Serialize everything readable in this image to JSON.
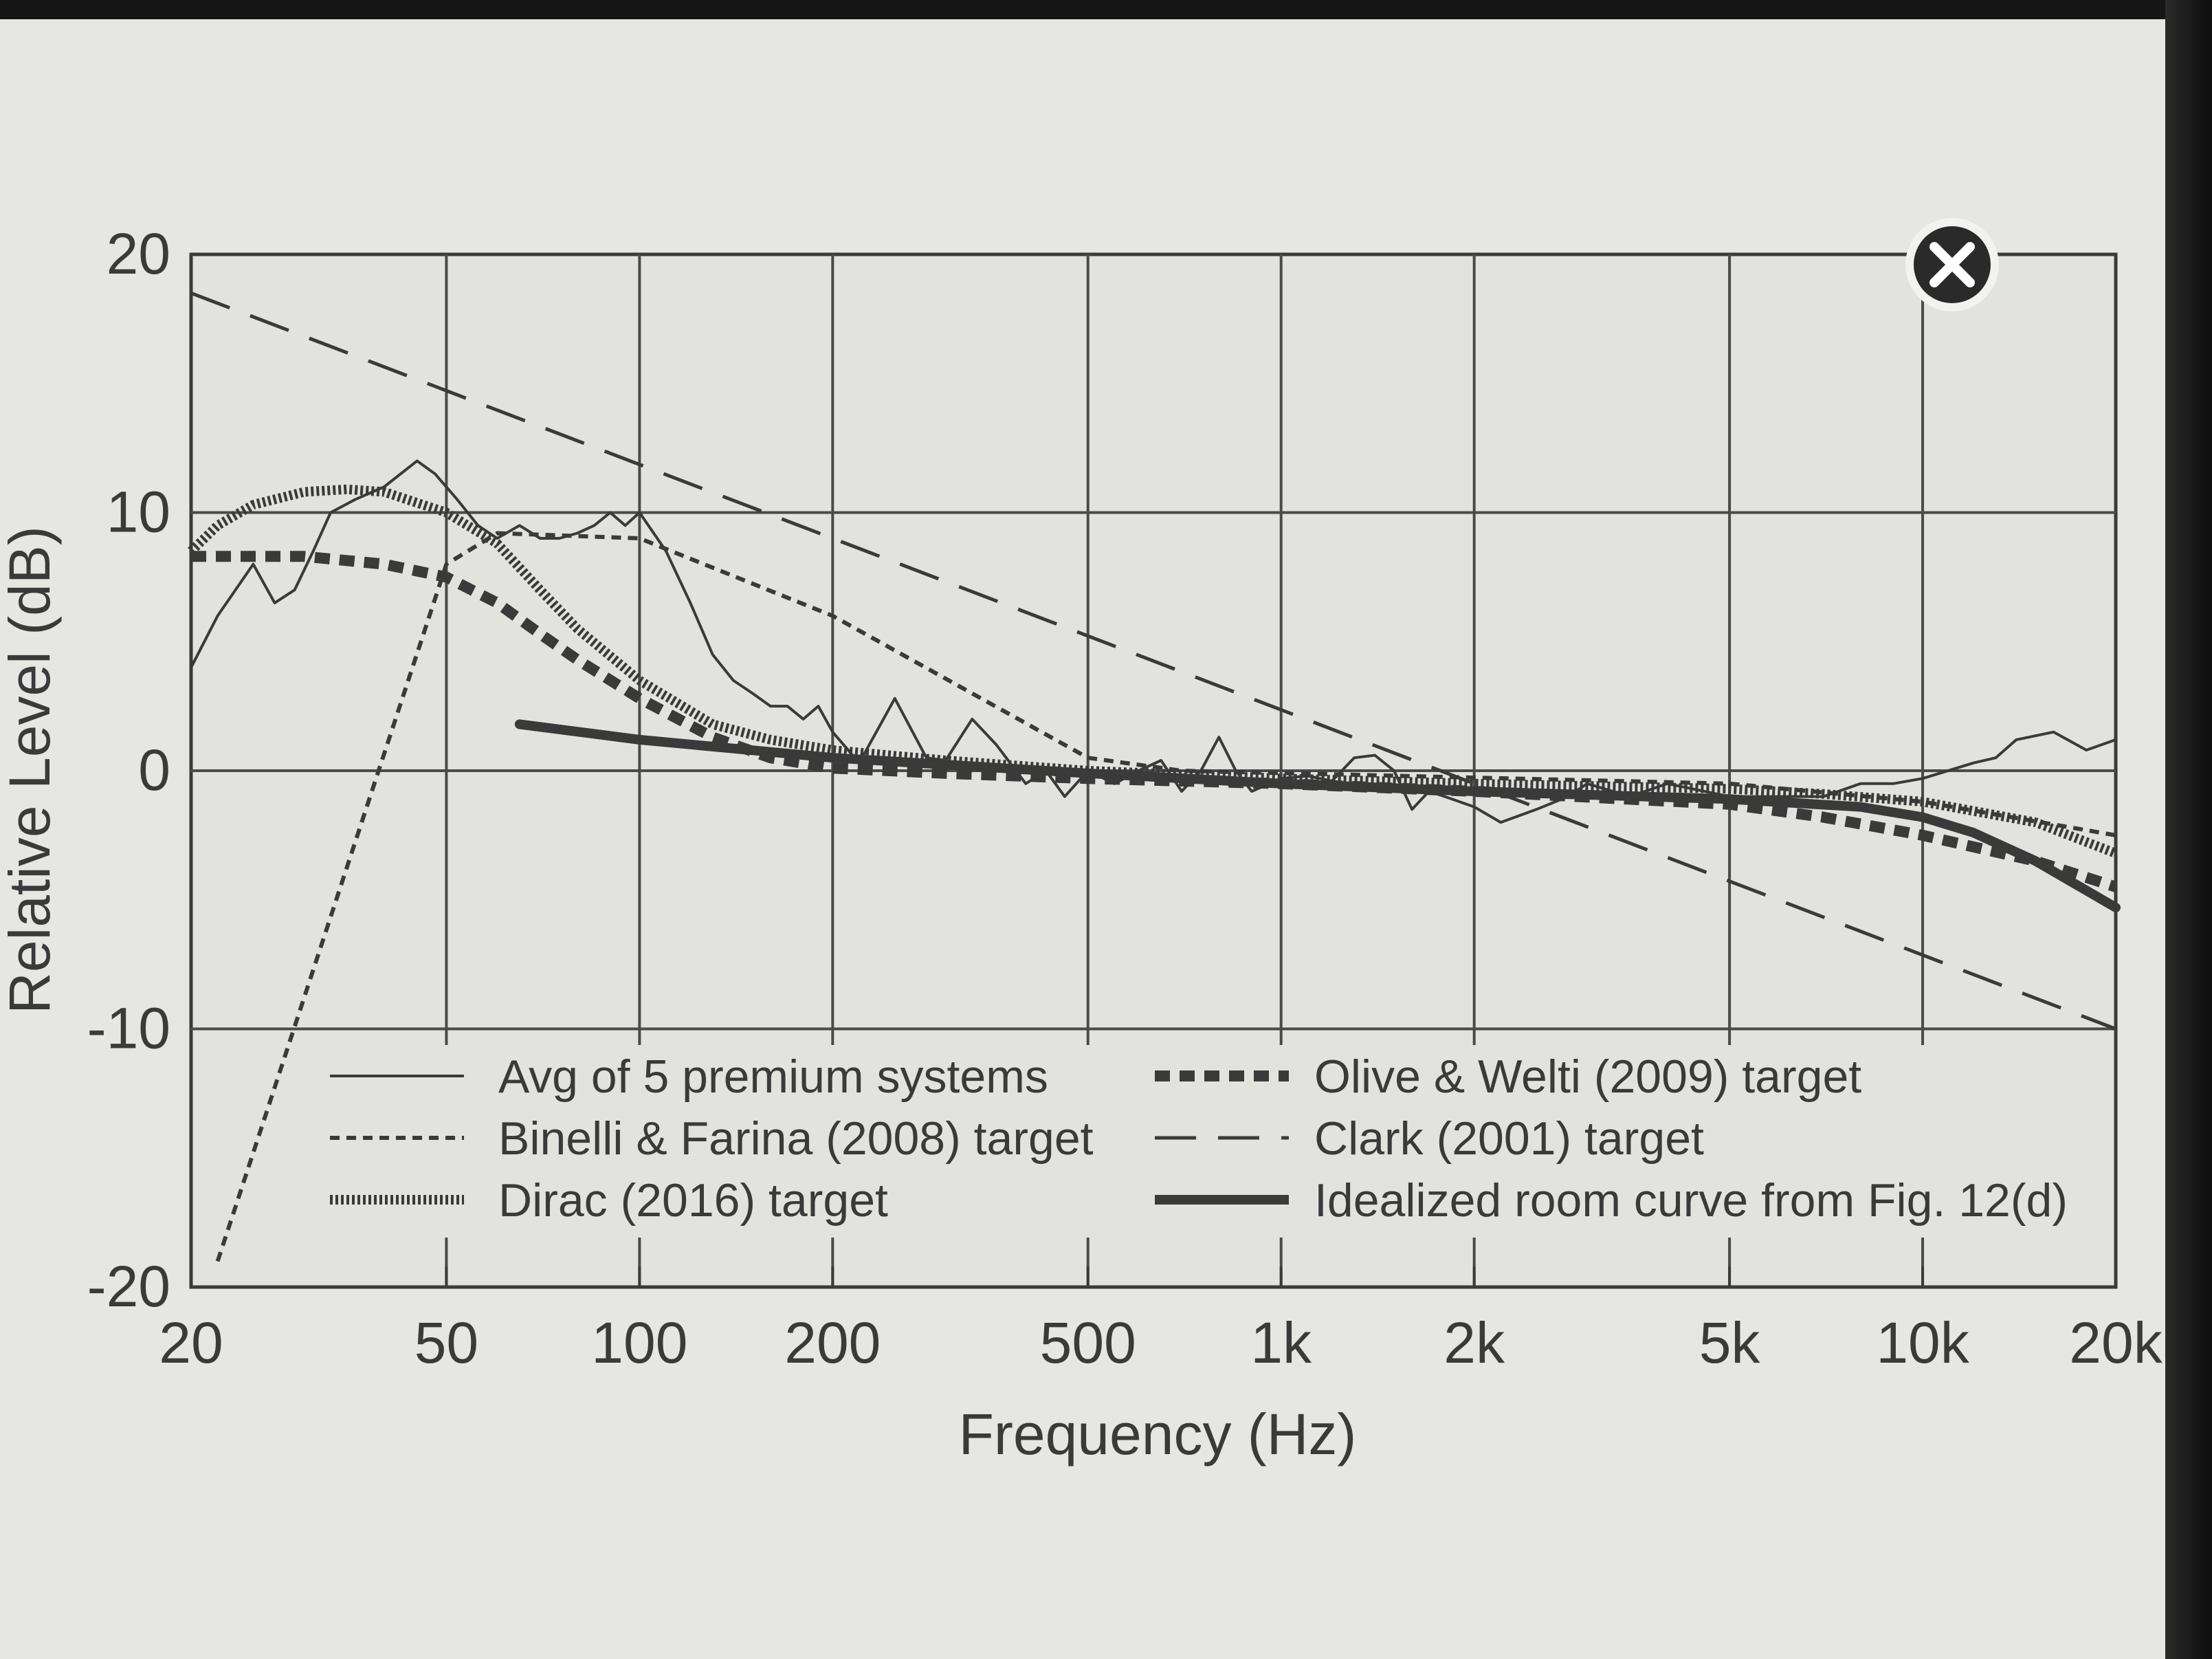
{
  "chart_data": {
    "type": "line",
    "xlabel": "Frequency (Hz)",
    "ylabel": "Relative Level (dB)",
    "xscale": "log",
    "xlim": [
      20,
      20000
    ],
    "ylim": [
      -20,
      20
    ],
    "grid": true,
    "legend_position": "bottom",
    "x_ticks": [
      {
        "value": 20,
        "label": "20"
      },
      {
        "value": 50,
        "label": "50"
      },
      {
        "value": 100,
        "label": "100"
      },
      {
        "value": 200,
        "label": "200"
      },
      {
        "value": 500,
        "label": "500"
      },
      {
        "value": 1000,
        "label": "1k"
      },
      {
        "value": 2000,
        "label": "2k"
      },
      {
        "value": 5000,
        "label": "5k"
      },
      {
        "value": 10000,
        "label": "10k"
      },
      {
        "value": 20000,
        "label": "20k"
      }
    ],
    "y_ticks": [
      {
        "value": 20,
        "label": "20"
      },
      {
        "value": 10,
        "label": "10"
      },
      {
        "value": 0,
        "label": "0"
      },
      {
        "value": -10,
        "label": "-10"
      },
      {
        "value": -20,
        "label": "-20"
      }
    ],
    "series": [
      {
        "name": "Avg of 5 premium systems",
        "style": "thin",
        "x": [
          20,
          22,
          25,
          27,
          29,
          31,
          33,
          36,
          40,
          45,
          48,
          52,
          56,
          60,
          65,
          70,
          75,
          80,
          85,
          90,
          95,
          100,
          110,
          120,
          130,
          140,
          150,
          160,
          170,
          180,
          190,
          200,
          220,
          250,
          280,
          300,
          330,
          360,
          400,
          430,
          460,
          500,
          550,
          600,
          650,
          700,
          750,
          800,
          850,
          900,
          1000,
          1100,
          1200,
          1300,
          1400,
          1500,
          1600,
          1700,
          1800,
          2000,
          2200,
          2500,
          2800,
          3000,
          3500,
          4000,
          5000,
          6000,
          7000,
          8000,
          9000,
          10000,
          12000,
          13000,
          14000,
          16000,
          18000,
          20000
        ],
        "values": [
          4,
          6,
          8,
          6.5,
          7,
          8.5,
          10,
          10.5,
          11,
          12,
          11.5,
          10.5,
          9.5,
          9,
          9.5,
          9,
          9,
          9.2,
          9.5,
          10,
          9.5,
          10,
          8.5,
          6.5,
          4.5,
          3.5,
          3,
          2.5,
          2.5,
          2,
          2.5,
          1.5,
          0.3,
          2.8,
          0.5,
          0.4,
          2,
          1,
          -0.5,
          0,
          -1,
          0,
          -0.5,
          0,
          0.4,
          -0.8,
          0,
          1.3,
          0,
          -0.8,
          -0.3,
          -0.2,
          -0.4,
          0.5,
          0.6,
          0,
          -1.5,
          -0.8,
          -1,
          -1.4,
          -2,
          -1.5,
          -1,
          -0.5,
          -1,
          -0.5,
          -1,
          -1,
          -1,
          -0.5,
          -0.5,
          -0.3,
          0.3,
          0.5,
          1.2,
          1.5,
          0.8,
          1.2
        ]
      },
      {
        "name": "Binelli & Farina (2008) target",
        "style": "short-dash",
        "x": [
          22,
          50,
          60,
          100,
          200,
          500,
          700,
          5000,
          10000,
          20000
        ],
        "values": [
          -19,
          8,
          9.2,
          9,
          6,
          0.5,
          0,
          -0.5,
          -1.2,
          -2.5
        ]
      },
      {
        "name": "Dirac (2016) target",
        "style": "dotted-heavy",
        "x": [
          20,
          22,
          25,
          30,
          35,
          40,
          50,
          60,
          70,
          80,
          100,
          130,
          160,
          200,
          300,
          500,
          1000,
          2000,
          5000,
          7000,
          10000,
          15000,
          20000
        ],
        "values": [
          8.5,
          9.5,
          10.3,
          10.8,
          10.9,
          10.8,
          10,
          8.8,
          7,
          5.5,
          3.5,
          1.8,
          1.2,
          0.8,
          0.4,
          0,
          -0.3,
          -0.5,
          -0.7,
          -0.9,
          -1.2,
          -2,
          -3.2
        ]
      },
      {
        "name": "Olive & Welti (2009) target",
        "style": "heavy-dash",
        "x": [
          20,
          30,
          40,
          50,
          60,
          70,
          80,
          100,
          130,
          160,
          200,
          300,
          500,
          1000,
          2000,
          5000,
          7000,
          10000,
          15000,
          20000
        ],
        "values": [
          8.3,
          8.3,
          8,
          7.5,
          6.5,
          5.3,
          4.3,
          2.8,
          1.3,
          0.5,
          0.1,
          -0.1,
          -0.3,
          -0.5,
          -0.8,
          -1.3,
          -1.8,
          -2.5,
          -3.5,
          -4.5
        ]
      },
      {
        "name": "Clark (2001) target",
        "style": "long-dash",
        "x": [
          20,
          20000
        ],
        "values": [
          18.5,
          -10
        ]
      },
      {
        "name": "Idealized room curve from Fig. 12(d)",
        "style": "heavy-solid",
        "x": [
          65,
          100,
          200,
          500,
          1000,
          2000,
          5000,
          8000,
          10000,
          12000,
          15000,
          20000
        ],
        "values": [
          1.8,
          1.2,
          0.5,
          -0.1,
          -0.5,
          -0.8,
          -1.1,
          -1.4,
          -1.8,
          -2.4,
          -3.5,
          -5.3
        ]
      }
    ]
  },
  "legend": {
    "left": [
      {
        "label": "Avg of 5 premium systems",
        "style": "thin"
      },
      {
        "label": "Binelli & Farina (2008) target",
        "style": "short-dash"
      },
      {
        "label": "Dirac (2016) target",
        "style": "dotted-heavy"
      }
    ],
    "right": [
      {
        "label": "Olive & Welti (2009) target",
        "style": "heavy-dash"
      },
      {
        "label": "Clark (2001) target",
        "style": "long-dash"
      },
      {
        "label": "Idealized room curve from Fig. 12(d)",
        "style": "heavy-solid"
      }
    ]
  },
  "close_icon": "close-icon",
  "colors": {
    "ink": "#3a3a3a",
    "paper": "#e6e6e2",
    "grid": "#4a4a4a"
  }
}
